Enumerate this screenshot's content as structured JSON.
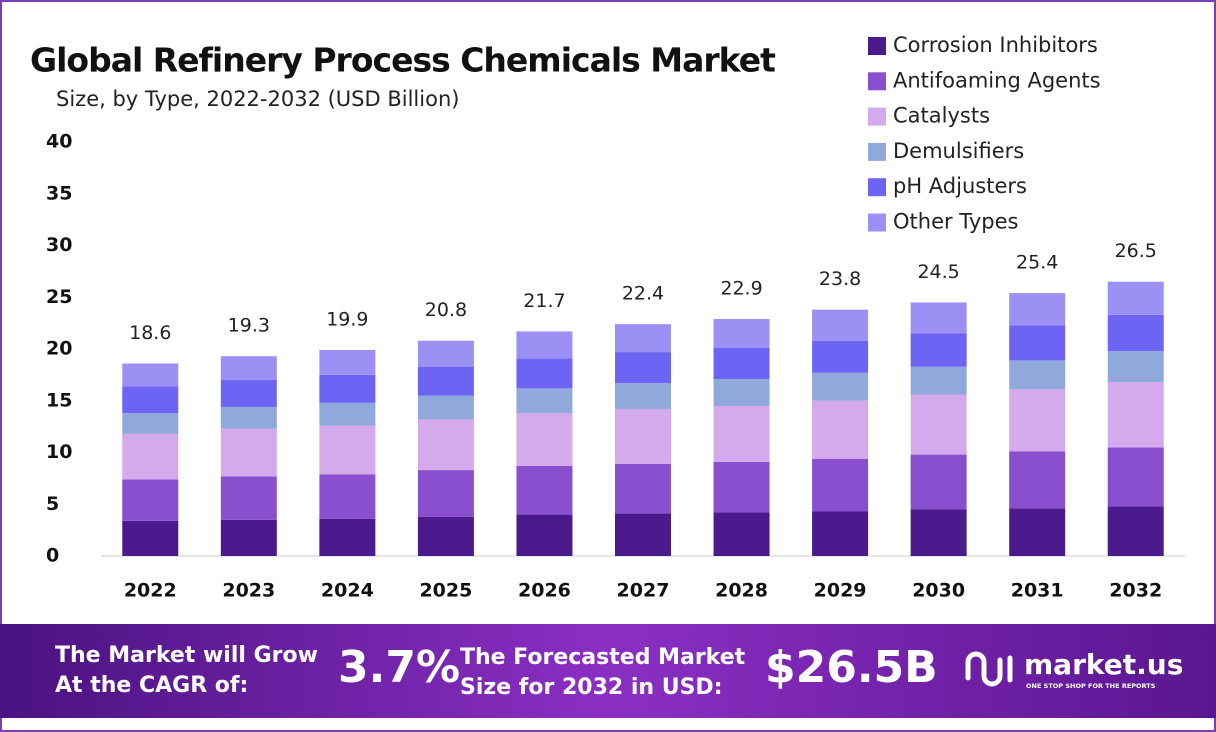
{
  "chart_data": {
    "type": "stacked-bar",
    "title": "Global Refinery Process Chemicals Market",
    "subtitle": "Size, by Type, 2022-2032 (USD Billion)",
    "categories": [
      "2022",
      "2023",
      "2024",
      "2025",
      "2026",
      "2027",
      "2028",
      "2029",
      "2030",
      "2031",
      "2032"
    ],
    "series": [
      {
        "name": "Corrosion Inhibitors",
        "color": "#4b1a8c",
        "values": [
          3.4,
          3.5,
          3.6,
          3.8,
          4.0,
          4.1,
          4.2,
          4.3,
          4.5,
          4.6,
          4.8
        ]
      },
      {
        "name": "Antifoaming Agents",
        "color": "#8a4fcf",
        "values": [
          4.0,
          4.2,
          4.3,
          4.5,
          4.7,
          4.8,
          4.9,
          5.1,
          5.3,
          5.5,
          5.7
        ]
      },
      {
        "name": "Catalysts",
        "color": "#d5aaec",
        "values": [
          4.4,
          4.6,
          4.7,
          4.9,
          5.1,
          5.3,
          5.4,
          5.6,
          5.8,
          6.0,
          6.3
        ]
      },
      {
        "name": "Demulsifiers",
        "color": "#8fa9dc",
        "values": [
          2.0,
          2.1,
          2.2,
          2.3,
          2.4,
          2.5,
          2.6,
          2.7,
          2.7,
          2.8,
          3.0
        ]
      },
      {
        "name": "pH Adjusters",
        "color": "#6e64f4",
        "values": [
          2.6,
          2.6,
          2.7,
          2.8,
          2.9,
          3.0,
          3.0,
          3.1,
          3.2,
          3.4,
          3.5
        ]
      },
      {
        "name": "Other Types",
        "color": "#9c90f4",
        "values": [
          2.2,
          2.3,
          2.4,
          2.5,
          2.6,
          2.7,
          2.8,
          3.0,
          3.0,
          3.1,
          3.2
        ]
      }
    ],
    "totals": [
      18.6,
      19.3,
      19.9,
      20.8,
      21.7,
      22.4,
      22.9,
      23.8,
      24.5,
      25.4,
      26.5
    ],
    "ylim": [
      0,
      40
    ],
    "yticks": [
      0,
      5,
      10,
      15,
      20,
      25,
      30,
      35,
      40
    ],
    "grid": false,
    "legend": "top-right"
  },
  "footer": {
    "cagr_text": [
      "The Market will Grow",
      "At the CAGR of:"
    ],
    "cagr_value": "3.7%",
    "forecast_text": [
      "The Forecasted Market",
      "Size for 2032 in USD:"
    ],
    "forecast_value": "$26.5B",
    "brand": "market.us",
    "tagline": "ONE STOP SHOP FOR THE REPORTS"
  }
}
